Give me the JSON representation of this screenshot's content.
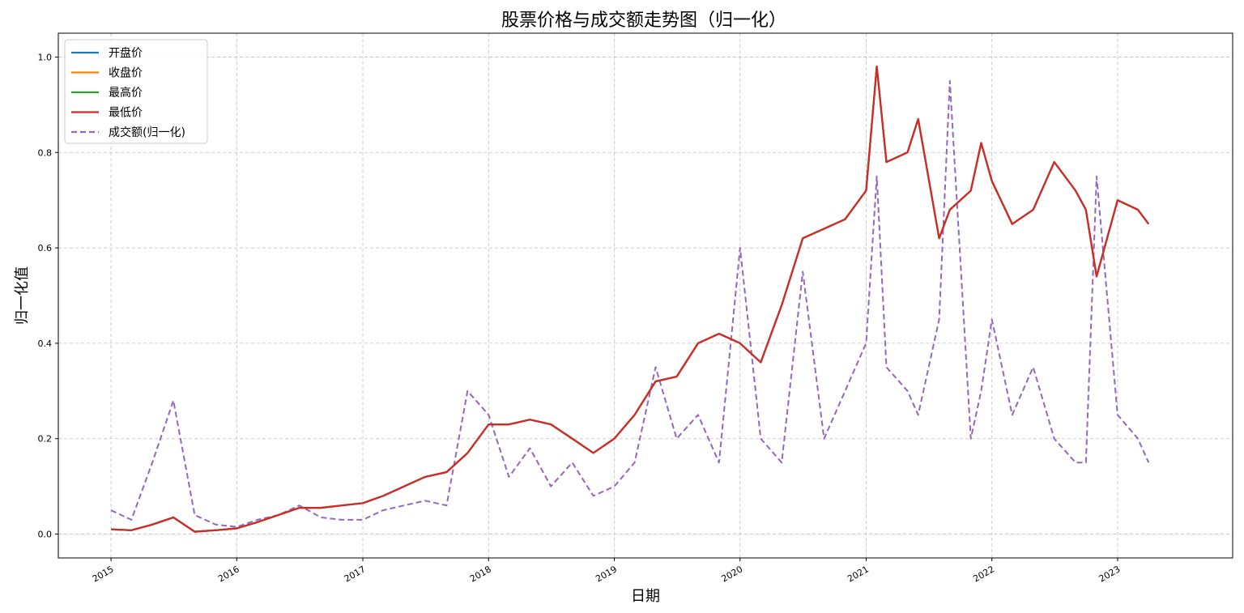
{
  "chart_data": {
    "type": "line",
    "title": "股票价格与成交额走势图（归一化）",
    "xlabel": "日期",
    "ylabel": "归一化值",
    "xlim": [
      "2014-08-01",
      "2023-12-01"
    ],
    "ylim": [
      -0.05,
      1.05
    ],
    "xticks": [
      "2015",
      "2016",
      "2017",
      "2018",
      "2019",
      "2020",
      "2021",
      "2022",
      "2023"
    ],
    "yticks": [
      "0.0",
      "0.2",
      "0.4",
      "0.6",
      "0.8",
      "1.0"
    ],
    "grid": true,
    "legend_position": "top-left",
    "x": [
      "2015-01",
      "2015-03",
      "2015-05",
      "2015-07",
      "2015-09",
      "2015-11",
      "2016-01",
      "2016-03",
      "2016-05",
      "2016-07",
      "2016-09",
      "2016-11",
      "2017-01",
      "2017-03",
      "2017-05",
      "2017-07",
      "2017-09",
      "2017-11",
      "2018-01",
      "2018-03",
      "2018-05",
      "2018-07",
      "2018-09",
      "2018-11",
      "2019-01",
      "2019-03",
      "2019-05",
      "2019-07",
      "2019-09",
      "2019-11",
      "2020-01",
      "2020-03",
      "2020-05",
      "2020-07",
      "2020-09",
      "2020-11",
      "2021-01",
      "2021-02",
      "2021-03",
      "2021-05",
      "2021-06",
      "2021-08",
      "2021-09",
      "2021-11",
      "2021-12",
      "2022-01",
      "2022-03",
      "2022-05",
      "2022-07",
      "2022-09",
      "2022-10",
      "2022-11",
      "2023-01",
      "2023-03",
      "2023-04"
    ],
    "series": [
      {
        "name": "开盘价",
        "color": "#1f77b4",
        "style": "solid",
        "values": [
          0.01,
          0.008,
          0.02,
          0.035,
          0.005,
          0.008,
          0.012,
          0.025,
          0.04,
          0.055,
          0.055,
          0.06,
          0.065,
          0.08,
          0.1,
          0.12,
          0.13,
          0.17,
          0.23,
          0.23,
          0.24,
          0.23,
          0.2,
          0.17,
          0.2,
          0.25,
          0.32,
          0.33,
          0.4,
          0.42,
          0.4,
          0.36,
          0.48,
          0.62,
          0.64,
          0.66,
          0.72,
          0.98,
          0.78,
          0.8,
          0.87,
          0.62,
          0.68,
          0.72,
          0.82,
          0.74,
          0.65,
          0.68,
          0.78,
          0.72,
          0.68,
          0.54,
          0.7,
          0.68,
          0.65
        ]
      },
      {
        "name": "收盘价",
        "color": "#ff7f0e",
        "style": "solid",
        "values": [
          0.01,
          0.008,
          0.02,
          0.035,
          0.005,
          0.008,
          0.012,
          0.025,
          0.04,
          0.055,
          0.055,
          0.06,
          0.065,
          0.08,
          0.1,
          0.12,
          0.13,
          0.17,
          0.23,
          0.23,
          0.24,
          0.23,
          0.2,
          0.17,
          0.2,
          0.25,
          0.32,
          0.33,
          0.4,
          0.42,
          0.4,
          0.36,
          0.48,
          0.62,
          0.64,
          0.66,
          0.72,
          0.98,
          0.78,
          0.8,
          0.87,
          0.62,
          0.68,
          0.72,
          0.82,
          0.74,
          0.65,
          0.68,
          0.78,
          0.72,
          0.68,
          0.54,
          0.7,
          0.68,
          0.65
        ]
      },
      {
        "name": "最高价",
        "color": "#2ca02c",
        "style": "solid",
        "values": [
          0.01,
          0.008,
          0.02,
          0.035,
          0.005,
          0.008,
          0.012,
          0.025,
          0.04,
          0.055,
          0.055,
          0.06,
          0.065,
          0.08,
          0.1,
          0.12,
          0.13,
          0.17,
          0.23,
          0.23,
          0.24,
          0.23,
          0.2,
          0.17,
          0.2,
          0.25,
          0.32,
          0.33,
          0.4,
          0.42,
          0.4,
          0.36,
          0.48,
          0.62,
          0.64,
          0.66,
          0.72,
          0.98,
          0.78,
          0.8,
          0.87,
          0.62,
          0.68,
          0.72,
          0.82,
          0.74,
          0.65,
          0.68,
          0.78,
          0.72,
          0.68,
          0.54,
          0.7,
          0.68,
          0.65
        ]
      },
      {
        "name": "最低价",
        "color": "#d62728",
        "style": "solid",
        "values": [
          0.01,
          0.008,
          0.02,
          0.035,
          0.005,
          0.008,
          0.012,
          0.025,
          0.04,
          0.055,
          0.055,
          0.06,
          0.065,
          0.08,
          0.1,
          0.12,
          0.13,
          0.17,
          0.23,
          0.23,
          0.24,
          0.23,
          0.2,
          0.17,
          0.2,
          0.25,
          0.32,
          0.33,
          0.4,
          0.42,
          0.4,
          0.36,
          0.48,
          0.62,
          0.64,
          0.66,
          0.72,
          0.98,
          0.78,
          0.8,
          0.87,
          0.62,
          0.68,
          0.72,
          0.82,
          0.74,
          0.65,
          0.68,
          0.78,
          0.72,
          0.68,
          0.54,
          0.7,
          0.68,
          0.65
        ]
      },
      {
        "name": "成交额(归一化)",
        "color": "#9467bd",
        "style": "dashed",
        "values": [
          0.05,
          0.03,
          0.15,
          0.28,
          0.04,
          0.02,
          0.015,
          0.03,
          0.04,
          0.06,
          0.035,
          0.03,
          0.03,
          0.05,
          0.06,
          0.07,
          0.06,
          0.3,
          0.25,
          0.12,
          0.18,
          0.1,
          0.15,
          0.08,
          0.1,
          0.15,
          0.35,
          0.2,
          0.25,
          0.15,
          0.6,
          0.2,
          0.15,
          0.55,
          0.2,
          0.3,
          0.4,
          0.75,
          0.35,
          0.3,
          0.25,
          0.45,
          0.95,
          0.2,
          0.3,
          0.45,
          0.25,
          0.35,
          0.2,
          0.15,
          0.15,
          0.75,
          0.25,
          0.2,
          0.15
        ]
      }
    ]
  }
}
